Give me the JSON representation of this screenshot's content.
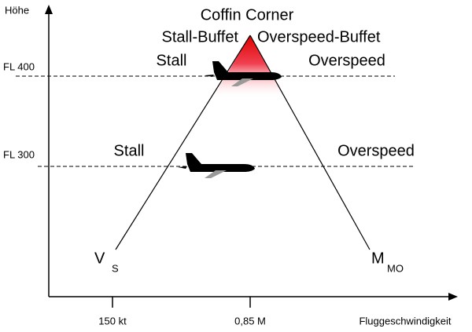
{
  "axes": {
    "y_label": "Höhe",
    "x_label": "Fluggeschwindigkeit",
    "x_ticks": [
      "150 kt",
      "0,85 M"
    ]
  },
  "peak": {
    "title": "Coffin Corner",
    "left": "Stall-Buffet",
    "right": "Overspeed-Buffet"
  },
  "levels": [
    {
      "label": "FL 400",
      "left": "Stall",
      "right": "Overspeed"
    },
    {
      "label": "FL 300",
      "left": "Stall",
      "right": "Overspeed"
    }
  ],
  "curves": {
    "left": {
      "symbol": "V",
      "subscript": "S"
    },
    "right": {
      "symbol": "M",
      "subscript": "MO"
    }
  }
}
